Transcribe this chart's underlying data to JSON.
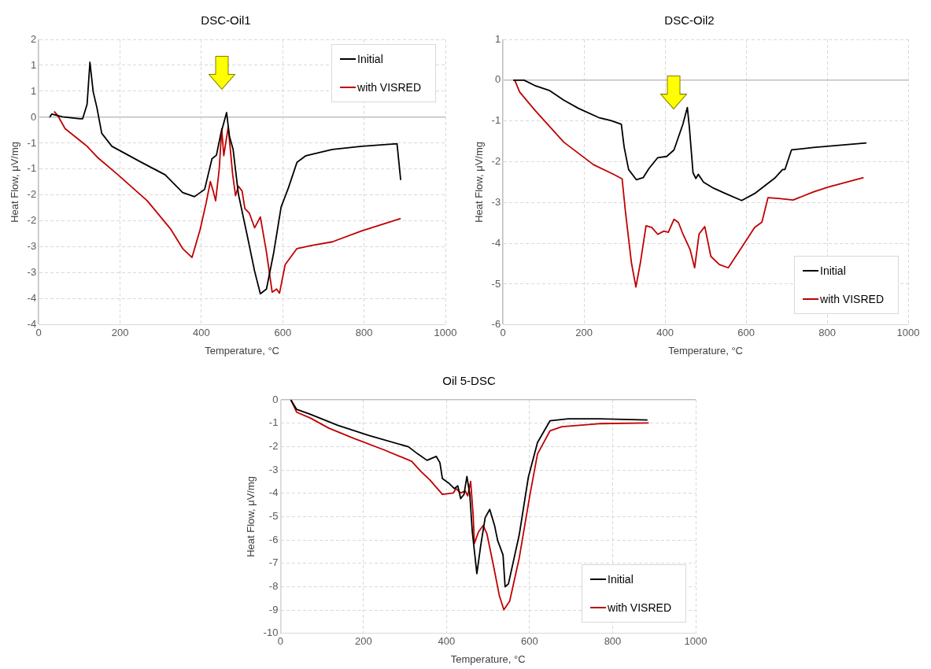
{
  "chart_data": [
    {
      "type": "line",
      "title": "DSC-Oil1",
      "xlabel": "Temperature, °C",
      "ylabel": "Heat Flow, μV/mg",
      "xlim": [
        0,
        1000
      ],
      "xticks": [
        0,
        200,
        400,
        600,
        800,
        1000
      ],
      "ylim": [
        -4,
        1.5
      ],
      "yticks": [
        {
          "value": 1.5,
          "label": "2"
        },
        {
          "value": 1,
          "label": "1"
        },
        {
          "value": 0.5,
          "label": "1"
        },
        {
          "value": 0,
          "label": "0"
        },
        {
          "value": -0.5,
          "label": "-1"
        },
        {
          "value": -1,
          "label": "-1"
        },
        {
          "value": -1.5,
          "label": "-2"
        },
        {
          "value": -2,
          "label": "-2"
        },
        {
          "value": -2.5,
          "label": "-3"
        },
        {
          "value": -3,
          "label": "-3"
        },
        {
          "value": -3.5,
          "label": "-4"
        },
        {
          "value": -4,
          "label": "-4"
        }
      ],
      "grid": true,
      "legend": "top right",
      "marker": "none",
      "line_style": "solid",
      "series": [
        {
          "name": "Initial",
          "color": "#000000",
          "x": [
            27,
            32,
            58,
            101,
            108,
            119,
            126,
            134,
            143,
            155,
            180,
            253,
            311,
            354,
            383,
            408,
            426,
            437,
            448,
            462,
            469,
            478,
            491,
            513,
            531,
            545,
            560,
            578,
            596,
            614,
            635,
            657,
            722,
            794,
            881,
            890
          ],
          "values": [
            0,
            0.06,
            0.01,
            -0.03,
            -0.03,
            0.25,
            1.06,
            0.49,
            0.19,
            -0.31,
            -0.56,
            -0.87,
            -1.11,
            -1.45,
            -1.53,
            -1.39,
            -0.8,
            -0.73,
            -0.31,
            0.09,
            -0.37,
            -0.62,
            -1.48,
            -2.29,
            -2.97,
            -3.4,
            -3.31,
            -2.6,
            -1.73,
            -1.36,
            -0.87,
            -0.74,
            -0.62,
            -0.56,
            -0.51,
            -1.21
          ]
        },
        {
          "name": "with VISRED",
          "color": "#c00000",
          "x": [
            38,
            47,
            65,
            108,
            119,
            144,
            195,
            267,
            325,
            354,
            377,
            397,
            412,
            422,
            429,
            435,
            444,
            450,
            455,
            466,
            477,
            484,
            491,
            500,
            507,
            518,
            531,
            545,
            560,
            574,
            585,
            592,
            606,
            635,
            671,
            722,
            794,
            890
          ],
          "values": [
            0.11,
            0.03,
            -0.22,
            -0.49,
            -0.56,
            -0.77,
            -1.11,
            -1.61,
            -2.16,
            -2.53,
            -2.7,
            -2.16,
            -1.64,
            -1.24,
            -1.42,
            -1.61,
            -0.99,
            -0.22,
            -0.74,
            -0.19,
            -1.11,
            -1.51,
            -1.33,
            -1.42,
            -1.76,
            -1.85,
            -2.13,
            -1.92,
            -2.6,
            -3.37,
            -3.31,
            -3.39,
            -2.84,
            -2.53,
            -2.47,
            -2.4,
            -2.19,
            -1.95
          ]
        }
      ]
    },
    {
      "type": "line",
      "title": "DSC-Oil2",
      "xlabel": "Temperature, °C",
      "ylabel": "Heat Flow, μV/mg",
      "xlim": [
        0,
        1000
      ],
      "xticks": [
        0,
        200,
        400,
        600,
        800,
        1000
      ],
      "ylim": [
        -6,
        1
      ],
      "yticks": [
        1,
        0,
        -1,
        -2,
        -3,
        -4,
        -5,
        -6
      ],
      "grid": true,
      "legend": "bottom right",
      "marker": "none",
      "line_style": "solid",
      "series": [
        {
          "name": "Initial",
          "color": "#000000",
          "x": [
            25,
            52,
            78,
            114,
            150,
            186,
            237,
            266,
            292,
            299,
            310,
            329,
            346,
            360,
            382,
            404,
            422,
            444,
            455,
            460,
            469,
            476,
            482,
            495,
            520,
            549,
            589,
            621,
            672,
            690,
            696,
            712,
            766,
            897
          ],
          "values": [
            0,
            0,
            -0.13,
            -0.25,
            -0.49,
            -0.69,
            -0.92,
            -0.99,
            -1.08,
            -1.64,
            -2.19,
            -2.44,
            -2.39,
            -2.17,
            -1.9,
            -1.87,
            -1.71,
            -1.08,
            -0.67,
            -1.16,
            -2.27,
            -2.41,
            -2.31,
            -2.5,
            -2.65,
            -2.78,
            -2.95,
            -2.78,
            -2.39,
            -2.19,
            -2.19,
            -1.71,
            -1.65,
            -1.54
          ]
        },
        {
          "name": "with VISRED",
          "color": "#c00000",
          "x": [
            29,
            41,
            78,
            150,
            223,
            273,
            294,
            302,
            317,
            328,
            339,
            353,
            367,
            382,
            397,
            408,
            422,
            433,
            444,
            462,
            473,
            484,
            498,
            513,
            534,
            556,
            585,
            621,
            639,
            654,
            680,
            716,
            766,
            803,
            890
          ],
          "values": [
            0,
            -0.29,
            -0.73,
            -1.52,
            -2.07,
            -2.31,
            -2.42,
            -3.21,
            -4.48,
            -5.07,
            -4.48,
            -3.57,
            -3.61,
            -3.78,
            -3.7,
            -3.73,
            -3.41,
            -3.49,
            -3.77,
            -4.16,
            -4.6,
            -3.77,
            -3.59,
            -4.32,
            -4.52,
            -4.6,
            -4.16,
            -3.61,
            -3.48,
            -2.88,
            -2.9,
            -2.94,
            -2.74,
            -2.62,
            -2.39
          ]
        }
      ]
    },
    {
      "type": "line",
      "title": "Oil 5-DSC",
      "xlabel": "Temperature, °C",
      "ylabel": "Heat Flow, μV/mg",
      "xlim": [
        0,
        1000
      ],
      "xticks": [
        0,
        200,
        400,
        600,
        800,
        1000
      ],
      "ylim": [
        -10,
        0
      ],
      "yticks": [
        0,
        -1,
        -2,
        -3,
        -4,
        -5,
        -6,
        -7,
        -8,
        -9,
        -10
      ],
      "grid": true,
      "legend": "bottom right",
      "marker": "none",
      "line_style": "solid",
      "series": [
        {
          "name": "Initial",
          "color": "#000000",
          "x": [
            25,
            39,
            72,
            138,
            212,
            308,
            331,
            353,
            375,
            384,
            390,
            405,
            419,
            427,
            434,
            442,
            449,
            456,
            462,
            473,
            482,
            493,
            504,
            516,
            523,
            536,
            541,
            549,
            575,
            597,
            619,
            649,
            693,
            767,
            884
          ],
          "values": [
            0,
            -0.41,
            -0.62,
            -1.09,
            -1.52,
            -2.01,
            -2.32,
            -2.59,
            -2.42,
            -2.69,
            -3.37,
            -3.56,
            -3.8,
            -3.68,
            -4.23,
            -4.05,
            -3.28,
            -4.05,
            -5.65,
            -7.44,
            -6.27,
            -5.04,
            -4.69,
            -5.41,
            -6.02,
            -6.64,
            -8,
            -7.88,
            -5.78,
            -3.31,
            -1.83,
            -0.9,
            -0.81,
            -0.81,
            -0.86
          ]
        },
        {
          "name": "with VISRED",
          "color": "#c00000",
          "x": [
            25,
            39,
            72,
            116,
            175,
            249,
            316,
            338,
            360,
            390,
            401,
            416,
            423,
            434,
            445,
            451,
            458,
            464,
            467,
            477,
            488,
            497,
            512,
            527,
            538,
            552,
            575,
            601,
            619,
            649,
            678,
            767,
            887
          ],
          "values": [
            0,
            -0.53,
            -0.78,
            -1.21,
            -1.64,
            -2.14,
            -2.63,
            -3.06,
            -3.43,
            -4.05,
            -4.02,
            -3.99,
            -3.8,
            -3.99,
            -3.9,
            -4.11,
            -3.49,
            -4.91,
            -6.15,
            -5.65,
            -5.38,
            -5.72,
            -7.01,
            -8.37,
            -8.99,
            -8.62,
            -6.77,
            -4.05,
            -2.32,
            -1.33,
            -1.15,
            -1.02,
            -0.99
          ]
        }
      ]
    }
  ]
}
